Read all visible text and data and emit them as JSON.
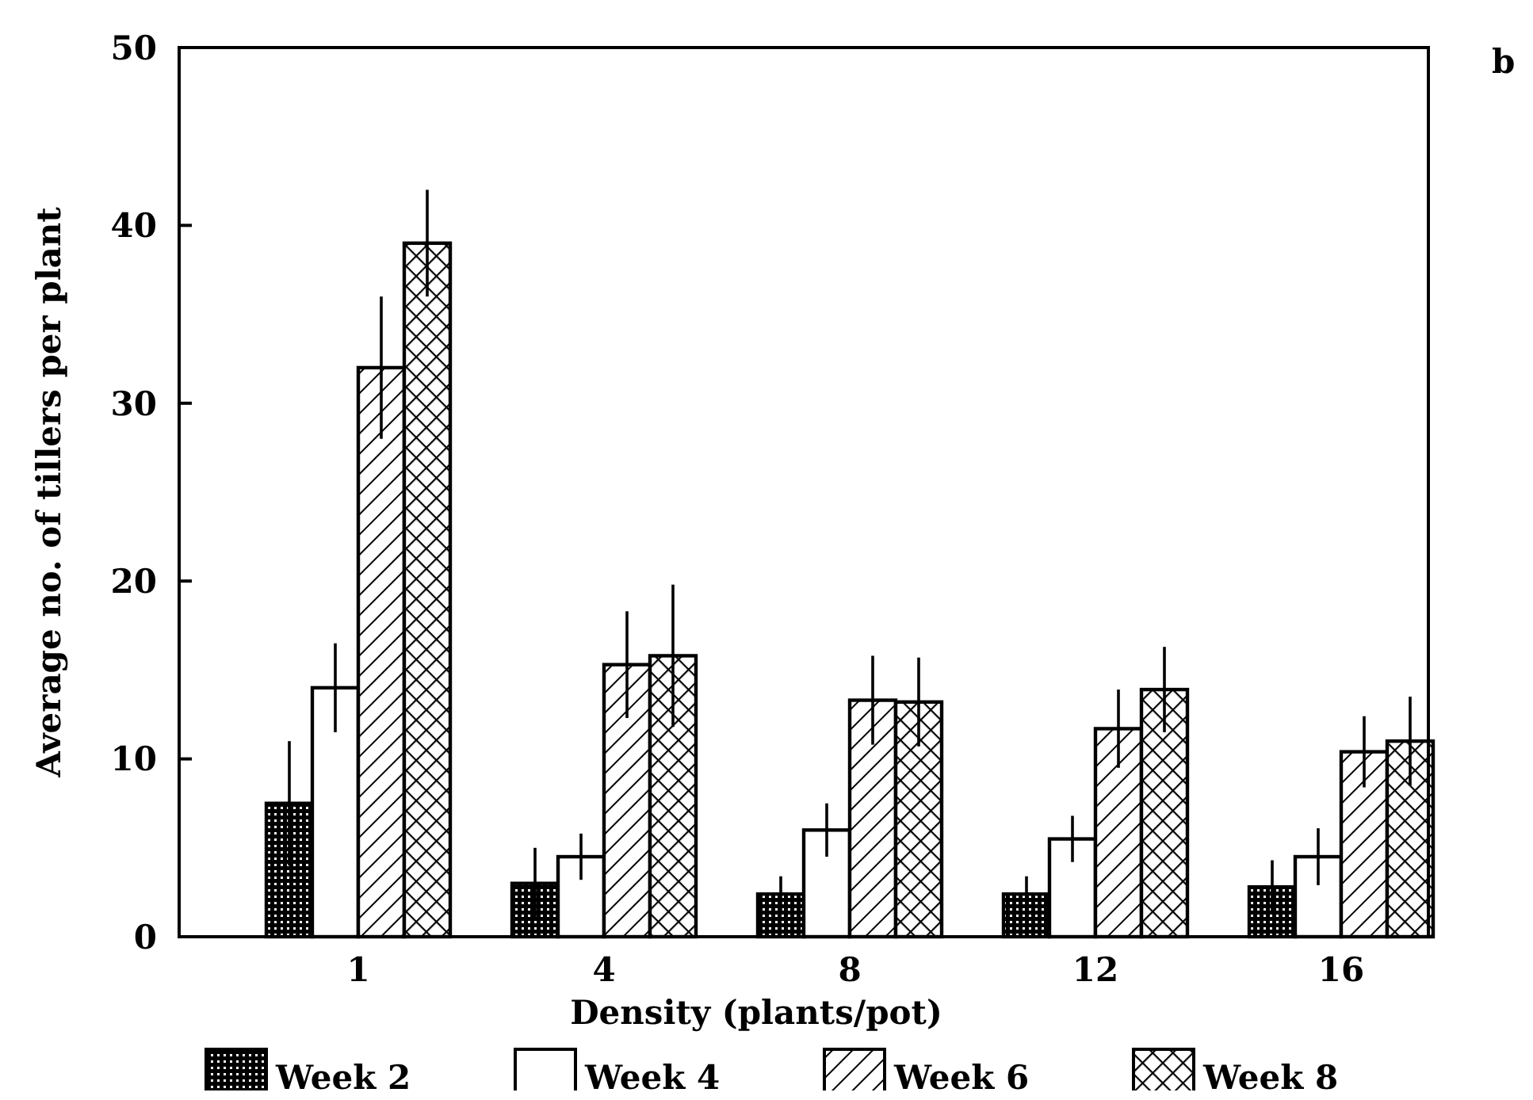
{
  "chart_data": {
    "type": "bar",
    "xlabel": "Density (plants/pot)",
    "ylabel": "Average no. of tillers per plant",
    "categories": [
      "1",
      "4",
      "8",
      "12",
      "16"
    ],
    "series": [
      {
        "name": "Week 2",
        "color": "#000000",
        "values": [
          7.5,
          3,
          2.4,
          2.4,
          2.8
        ],
        "errors": [
          3.5,
          2,
          1,
          1,
          1.5
        ]
      },
      {
        "name": "Week 4",
        "color": "#000000",
        "values": [
          14,
          4.5,
          6,
          5.5,
          4.5
        ],
        "errors": [
          2.5,
          1.3,
          1.5,
          1.3,
          1.6
        ]
      },
      {
        "name": "Week 6",
        "color": "#000000",
        "values": [
          32,
          15.3,
          13.3,
          11.7,
          10.4
        ],
        "errors": [
          4,
          3,
          2.5,
          2.2,
          2
        ]
      },
      {
        "name": "Week 8",
        "color": "#000000",
        "values": [
          39,
          15.8,
          13.2,
          13.9,
          11
        ],
        "errors": [
          3,
          4,
          2.5,
          2.4,
          2.5
        ]
      }
    ],
    "ylim": [
      0,
      50
    ],
    "yticks": [
      0,
      10,
      20,
      30,
      40,
      50
    ],
    "grid": false,
    "legend": "bottom",
    "annotations": [
      "b"
    ]
  }
}
